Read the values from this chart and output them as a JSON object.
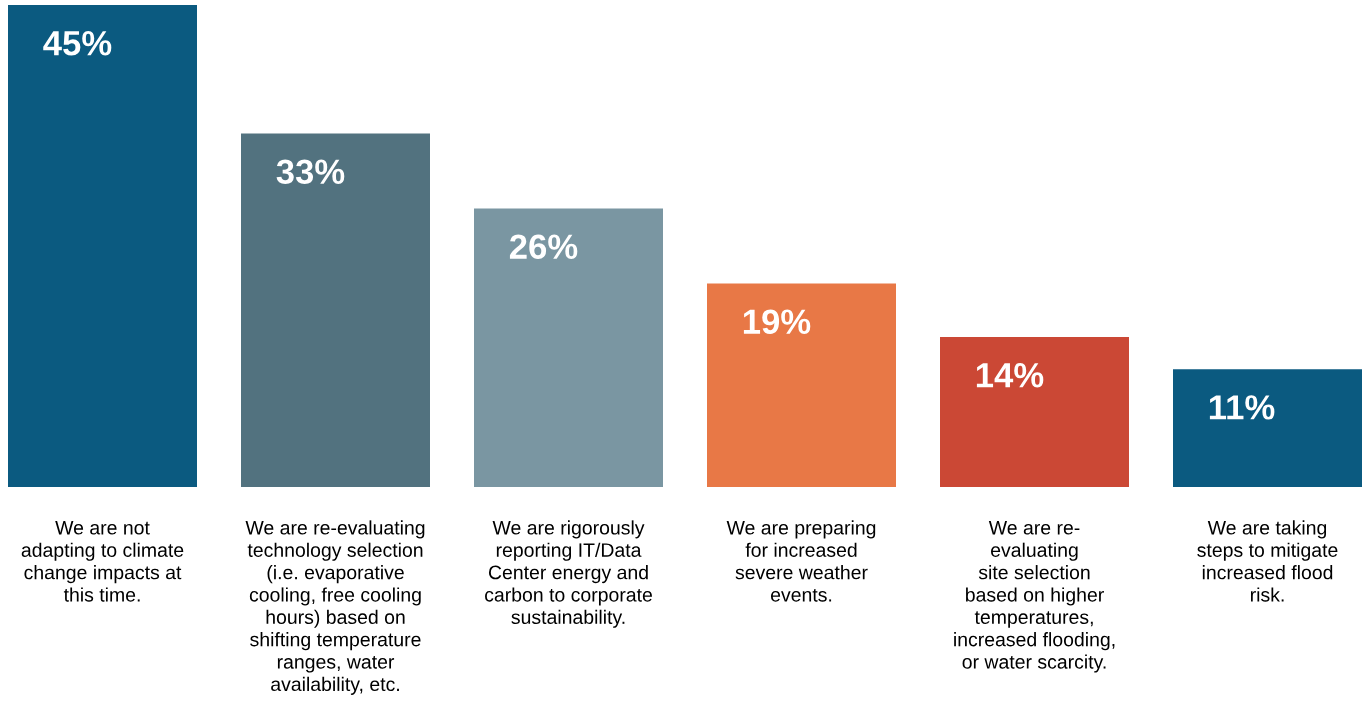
{
  "chart_data": {
    "type": "bar",
    "categories": [
      "We are not\nadapting to climate\nchange impacts at\nthis time.",
      "We are re-evaluating\ntechnology selection\n(i.e. evaporative\ncooling, free cooling\nhours) based on\nshifting temperature\nranges, water\navailability, etc.",
      "We are rigorously\nreporting IT/Data\nCenter energy and\ncarbon to corporate\nsustainability.",
      "We are preparing\nfor increased\nsevere weather\nevents.",
      "We are re-\nevaluating\nsite selection\nbased on higher\ntemperatures,\nincreased flooding,\nor water scarcity.",
      "We are taking\nsteps to mitigate\nincreased flood\nrisk."
    ],
    "values": [
      45,
      33,
      26,
      19,
      14,
      11
    ],
    "colors": [
      "#0b5a80",
      "#52727f",
      "#7a96a2",
      "#e87846",
      "#cb4835",
      "#0b5a80"
    ],
    "value_labels": [
      "45%",
      "33%",
      "26%",
      "19%",
      "14%",
      "11%"
    ]
  }
}
